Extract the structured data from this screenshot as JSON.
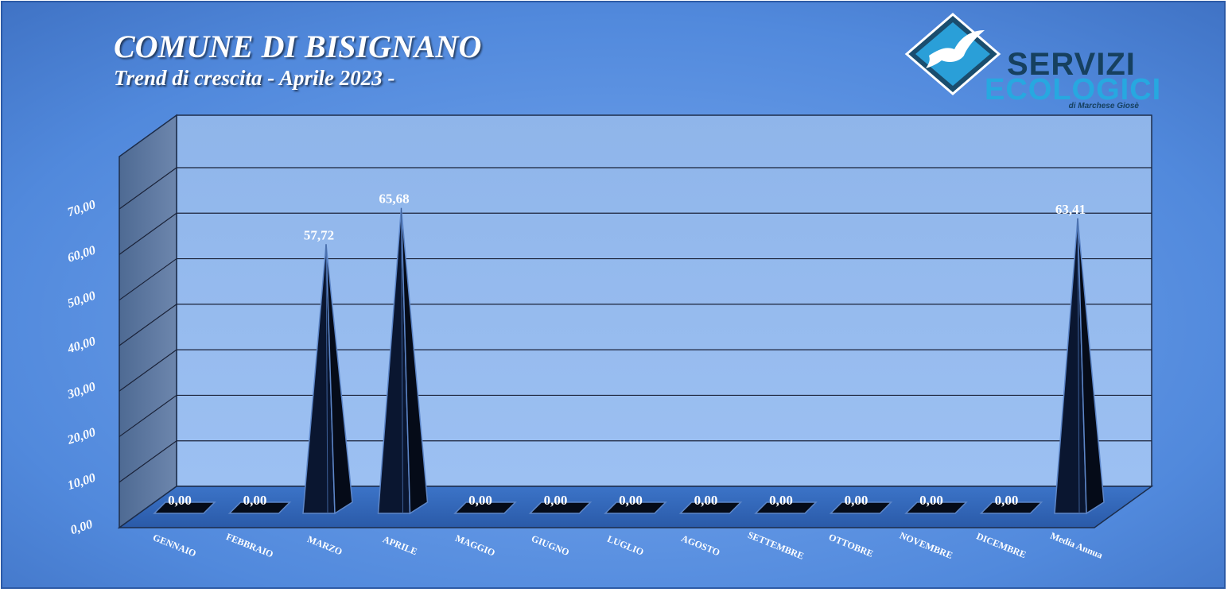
{
  "header": {
    "title": "COMUNE DI BISIGNANO",
    "subtitle": "Trend di crescita - Aprile 2023 -"
  },
  "logo": {
    "line1": "SERVIZI",
    "line2": "ECOLOGICI",
    "line3": "di Marchese Giosè",
    "icon": "seagull-icon"
  },
  "colors": {
    "background": "#4f86d8",
    "plot_back": "#8ab2e8",
    "plot_floor": "#2f64b6",
    "pyramid": "#0b1730",
    "label": "#ffffff",
    "logo_dark": "#16405f",
    "logo_light": "#27a8e0"
  },
  "chart_data": {
    "type": "bar",
    "style": "3d-pyramid",
    "categories": [
      "GENNAIO",
      "FEBBRAIO",
      "MARZO",
      "APRILE",
      "MAGGIO",
      "GIUGNO",
      "LUGLIO",
      "AGOSTO",
      "SETTEMBRE",
      "OTTOBRE",
      "NOVEMBRE",
      "DICEMBRE",
      "Media Annua"
    ],
    "values": [
      0,
      0,
      57.72,
      65.68,
      0,
      0,
      0,
      0,
      0,
      0,
      0,
      0,
      63.41
    ],
    "value_labels": [
      "0,00",
      "0,00",
      "57,72",
      "65,68",
      "0,00",
      "0,00",
      "0,00",
      "0,00",
      "0,00",
      "0,00",
      "0,00",
      "0,00",
      "63,41"
    ],
    "yticks": [
      "0,00",
      "10,00",
      "20,00",
      "30,00",
      "40,00",
      "50,00",
      "60,00",
      "70,00"
    ],
    "ylim": [
      0,
      70
    ],
    "grid": true,
    "legend": "none",
    "title": "COMUNE DI BISIGNANO",
    "subtitle": "Trend di crescita - Aprile 2023 -"
  }
}
